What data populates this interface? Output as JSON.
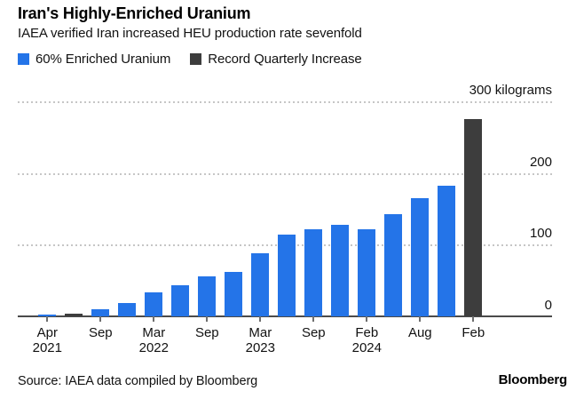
{
  "header": {
    "title": "Iran's Highly-Enriched Uranium",
    "subtitle": "IAEA verified Iran increased HEU production rate sevenfold"
  },
  "footer": {
    "source": "Source: IAEA data compiled by Bloomberg",
    "brand": "Bloomberg"
  },
  "colors": {
    "blue": "#2474e8",
    "dark": "#3d3d3d",
    "grid": "#c6c6c6",
    "axis": "#4a4a4a",
    "text": "#121212"
  },
  "chart_data": {
    "type": "bar",
    "title": "Iran's Highly-Enriched Uranium",
    "subtitle": "IAEA verified Iran increased HEU production rate sevenfold",
    "unit": "kilograms",
    "ylim": [
      0,
      300
    ],
    "grid": "horizontal-dotted",
    "legend_position": "top-left",
    "yticks": [
      {
        "value": 300,
        "label": "300 kilograms"
      },
      {
        "value": 200,
        "label": "200"
      },
      {
        "value": 100,
        "label": "100"
      },
      {
        "value": 0,
        "label": "0"
      }
    ],
    "series": [
      {
        "name": "60% Enriched Uranium",
        "color": "#2474e8"
      },
      {
        "name": "Record Quarterly Increase",
        "color": "#3d3d3d"
      }
    ],
    "bars": [
      {
        "value": 2,
        "series": 0,
        "tick": "Apr",
        "tick_year": "2021"
      },
      {
        "value": 4,
        "series": 1
      },
      {
        "value": 10,
        "series": 0,
        "tick": "Sep"
      },
      {
        "value": 18,
        "series": 0
      },
      {
        "value": 33,
        "series": 0,
        "tick": "Mar",
        "tick_year": "2022"
      },
      {
        "value": 43,
        "series": 0
      },
      {
        "value": 56,
        "series": 0,
        "tick": "Sep"
      },
      {
        "value": 62,
        "series": 0
      },
      {
        "value": 88,
        "series": 0,
        "tick": "Mar",
        "tick_year": "2023"
      },
      {
        "value": 114,
        "series": 0
      },
      {
        "value": 122,
        "series": 0,
        "tick": "Sep"
      },
      {
        "value": 128,
        "series": 0
      },
      {
        "value": 121,
        "series": 0,
        "tick": "Feb",
        "tick_year": "2024"
      },
      {
        "value": 142,
        "series": 0
      },
      {
        "value": 165,
        "series": 0,
        "tick": "Aug"
      },
      {
        "value": 182,
        "series": 0
      },
      {
        "value": 275,
        "series": 1,
        "tick": "Feb"
      }
    ]
  }
}
